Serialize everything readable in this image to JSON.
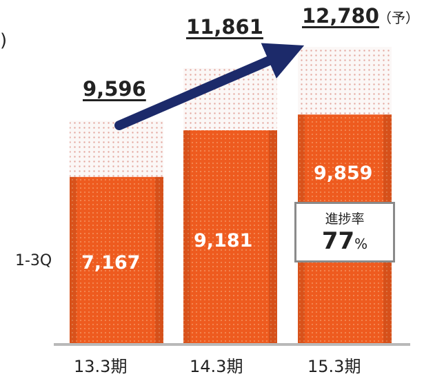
{
  "unit_paren": ")",
  "forecast_mark": "（予）",
  "row_label": "1-3Q",
  "progress_box": {
    "title": "進捗率",
    "value": "77",
    "unit": "%"
  },
  "colors": {
    "total_dots": "#e8b0a8",
    "q_fill": "#ef5a1e",
    "arrow": "#1c2a6a",
    "box_border": "#8a8a8a"
  },
  "chart_data": {
    "type": "bar",
    "categories": [
      "13.3期",
      "14.3期",
      "15.3期"
    ],
    "series": [
      {
        "values": [
          9596,
          11861,
          12780
        ]
      },
      {
        "name": "1-3Q",
        "values": [
          7167,
          9181,
          9859
        ]
      }
    ],
    "total_labels": [
      "9,596",
      "11,861",
      "12,780"
    ],
    "q_labels": [
      "7,167",
      "9,181",
      "9,859"
    ],
    "forecast_index": 2,
    "progress_rate": 77,
    "arrow": "from 13.3期 to 15.3期"
  }
}
